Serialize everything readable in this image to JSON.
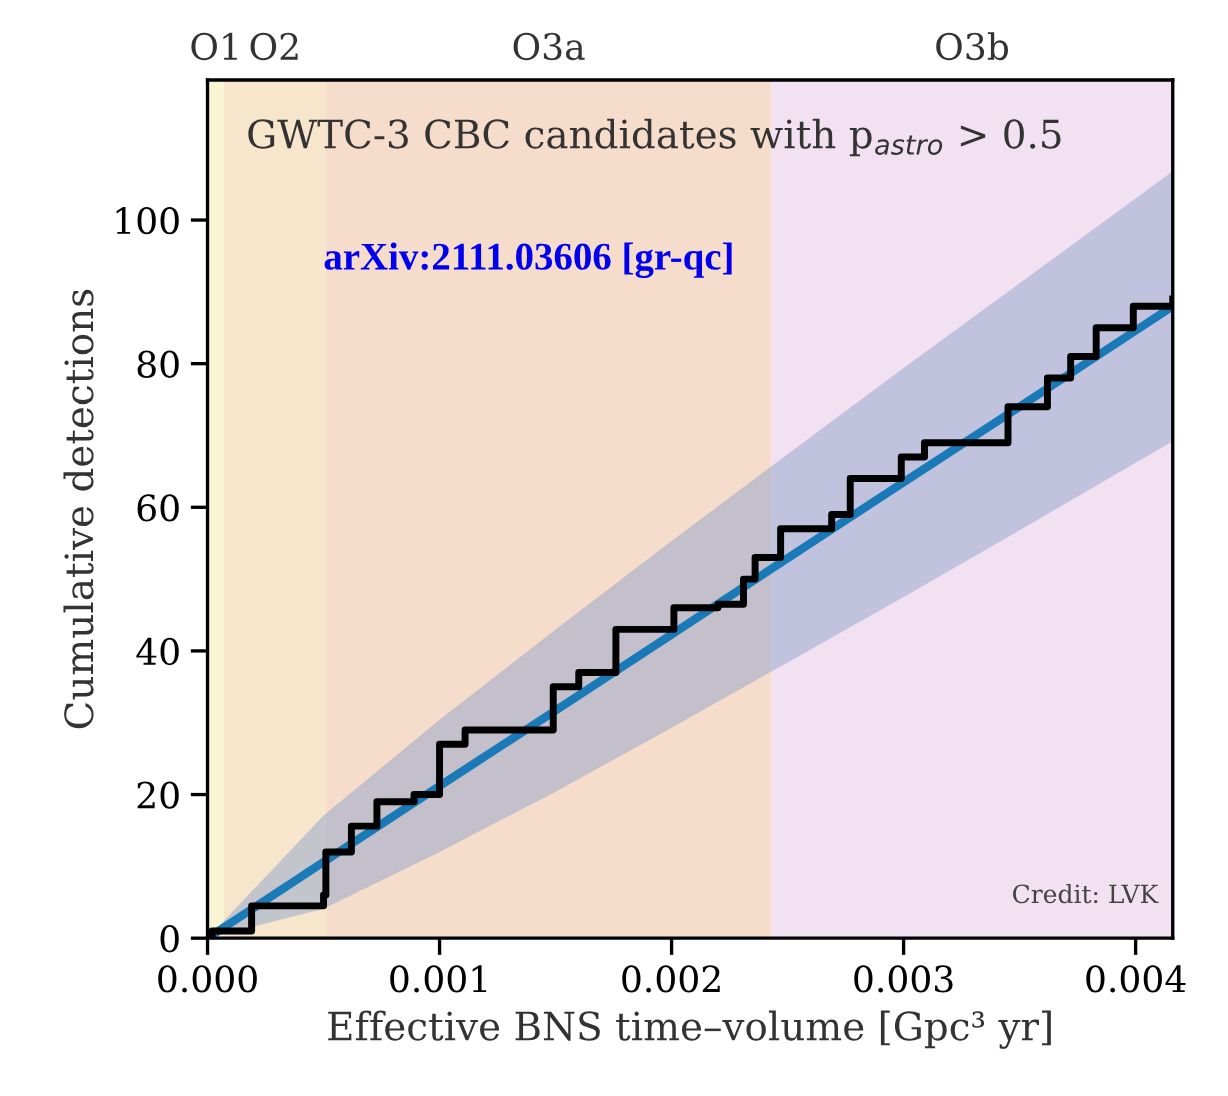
{
  "chart_data": {
    "type": "line",
    "title": "GWTC-3 CBC candidates with p$_{astro}$ > 0.5",
    "xlabel": "Effective BNS time–volume [Gpc³ yr]",
    "ylabel": "Cumulative detections",
    "xlim": [
      0,
      0.00416
    ],
    "ylim": [
      0,
      119.5
    ],
    "xticks": [
      {
        "value": 0,
        "label": "0.000"
      },
      {
        "value": 0.001,
        "label": "0.001"
      },
      {
        "value": 0.002,
        "label": "0.002"
      },
      {
        "value": 0.003,
        "label": "0.003"
      },
      {
        "value": 0.004,
        "label": "0.004"
      }
    ],
    "yticks": [
      0,
      20,
      40,
      60,
      80,
      100
    ],
    "grid": false,
    "legend": false,
    "bands": [
      {
        "axis": "x",
        "from": 0,
        "to": 7e-05,
        "label": "O1",
        "color": "#f9f5d3"
      },
      {
        "axis": "x",
        "from": 7e-05,
        "to": 0.00051,
        "label": "O2",
        "color": "#f7e6cc"
      },
      {
        "axis": "x",
        "from": 0.00051,
        "to": 0.00243,
        "label": "O3a",
        "color": "#f6dccb"
      },
      {
        "axis": "x",
        "from": 0.00243,
        "to": 0.00416,
        "label": "O3b",
        "color": "#f1e1f1"
      }
    ],
    "series": [
      {
        "color": "#1a7ab8",
        "x": [
          0,
          0.0005,
          0.001,
          0.0015,
          0.002,
          0.0025,
          0.003,
          0.0035,
          0.004,
          0.00416
        ],
        "values": [
          0,
          10.6,
          21.2,
          31.7,
          42.3,
          52.9,
          63.5,
          74.0,
          84.6,
          88
        ],
        "lower": [
          0,
          4.1,
          12.0,
          20.4,
          29.3,
          38.4,
          47.5,
          56.8,
          66.2,
          69.2
        ],
        "upper": [
          0,
          17.1,
          30.4,
          43.0,
          55.3,
          67.4,
          79.4,
          91.2,
          103.0,
          106.8
        ]
      },
      {
        "type": "step",
        "color": "#000000",
        "x": [
          0,
          2e-05,
          0.00019,
          0.00043,
          0.0005,
          0.00051,
          0.00062,
          0.00073,
          0.00089,
          0.001,
          0.00111,
          0.0013,
          0.00149,
          0.0016,
          0.00176,
          0.00201,
          0.0022,
          0.00231,
          0.00236,
          0.00247,
          0.00269,
          0.00277,
          0.00299,
          0.00309,
          0.00326,
          0.00345,
          0.00362,
          0.00372,
          0.00383,
          0.00399,
          0.00416
        ],
        "values": [
          0,
          1,
          4.5,
          4.5,
          6,
          12,
          15.6,
          19,
          20,
          27,
          29,
          29,
          35,
          37,
          43,
          46,
          46.5,
          50,
          53,
          57,
          59,
          64,
          67,
          69,
          69,
          74,
          78,
          81,
          85,
          88,
          89
        ]
      }
    ],
    "annotations": [
      "arXiv:2111.03606 [gr-qc]",
      "Credit: LVK"
    ]
  }
}
